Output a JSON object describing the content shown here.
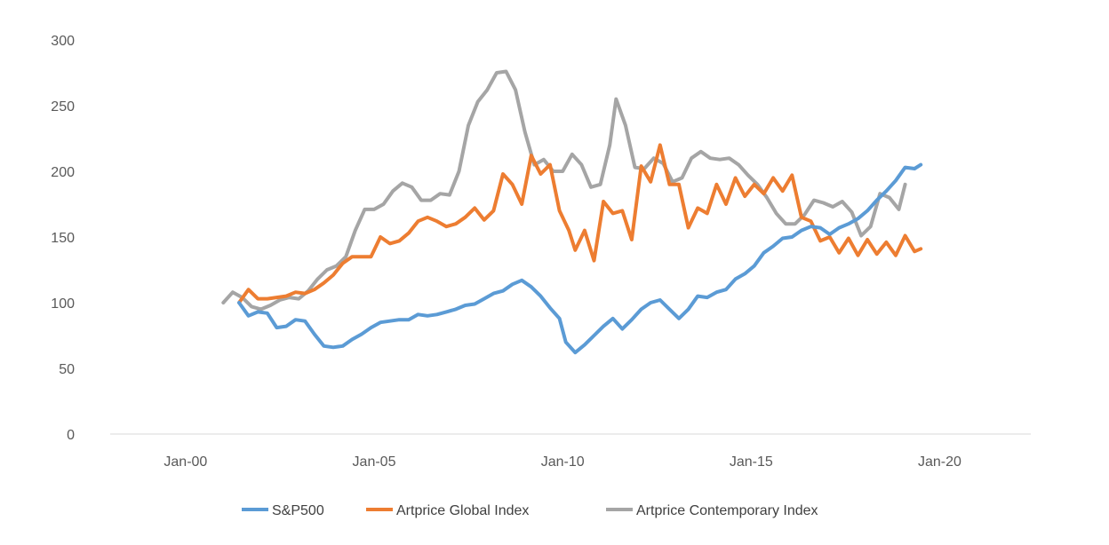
{
  "chart_data": {
    "type": "line",
    "title": "",
    "xlabel": "",
    "ylabel": "",
    "x_ticks": [
      "Jan-00",
      "Jan-05",
      "Jan-10",
      "Jan-15",
      "Jan-20"
    ],
    "x_tick_years": [
      2000,
      2005,
      2010,
      2015,
      2020
    ],
    "y_ticks": [
      0,
      50,
      100,
      150,
      200,
      250,
      300
    ],
    "ylim": [
      0,
      300
    ],
    "xlim": [
      "1998-01",
      "2022-06"
    ],
    "grid": false,
    "legend_position": "bottom",
    "series": [
      {
        "name": "S&P500",
        "color": "#5b9bd5",
        "points": [
          [
            "2001-06",
            100
          ],
          [
            "2001-09",
            90
          ],
          [
            "2001-12",
            93
          ],
          [
            "2002-03",
            92
          ],
          [
            "2002-06",
            81
          ],
          [
            "2002-09",
            82
          ],
          [
            "2002-12",
            87
          ],
          [
            "2003-03",
            86
          ],
          [
            "2003-06",
            76
          ],
          [
            "2003-09",
            67
          ],
          [
            "2003-12",
            66
          ],
          [
            "2004-03",
            67
          ],
          [
            "2004-06",
            72
          ],
          [
            "2004-09",
            76
          ],
          [
            "2004-12",
            81
          ],
          [
            "2005-03",
            85
          ],
          [
            "2005-06",
            86
          ],
          [
            "2005-09",
            87
          ],
          [
            "2005-12",
            87
          ],
          [
            "2006-03",
            91
          ],
          [
            "2006-06",
            90
          ],
          [
            "2006-09",
            91
          ],
          [
            "2006-12",
            93
          ],
          [
            "2007-03",
            95
          ],
          [
            "2007-06",
            98
          ],
          [
            "2007-09",
            99
          ],
          [
            "2007-12",
            103
          ],
          [
            "2008-03",
            107
          ],
          [
            "2008-06",
            109
          ],
          [
            "2008-09",
            114
          ],
          [
            "2008-12",
            117
          ],
          [
            "2009-03",
            112
          ],
          [
            "2009-06",
            105
          ],
          [
            "2009-09",
            96
          ],
          [
            "2009-12",
            88
          ],
          [
            "2010-02",
            70
          ],
          [
            "2010-05",
            62
          ],
          [
            "2010-08",
            68
          ],
          [
            "2010-11",
            75
          ],
          [
            "2011-02",
            82
          ],
          [
            "2011-05",
            88
          ],
          [
            "2011-08",
            80
          ],
          [
            "2011-11",
            87
          ],
          [
            "2012-02",
            95
          ],
          [
            "2012-05",
            100
          ],
          [
            "2012-08",
            102
          ],
          [
            "2012-11",
            95
          ],
          [
            "2013-02",
            88
          ],
          [
            "2013-05",
            95
          ],
          [
            "2013-08",
            105
          ],
          [
            "2013-11",
            104
          ],
          [
            "2014-02",
            108
          ],
          [
            "2014-05",
            110
          ],
          [
            "2014-08",
            118
          ],
          [
            "2014-11",
            122
          ],
          [
            "2015-02",
            128
          ],
          [
            "2015-05",
            138
          ],
          [
            "2015-08",
            143
          ],
          [
            "2015-11",
            149
          ],
          [
            "2016-02",
            150
          ],
          [
            "2016-05",
            155
          ],
          [
            "2016-08",
            158
          ],
          [
            "2016-11",
            157
          ],
          [
            "2017-02",
            152
          ],
          [
            "2017-05",
            157
          ],
          [
            "2017-08",
            160
          ],
          [
            "2017-11",
            164
          ],
          [
            "2018-02",
            170
          ],
          [
            "2018-05",
            178
          ],
          [
            "2018-08",
            185
          ],
          [
            "2018-11",
            193
          ],
          [
            "2019-02",
            203
          ],
          [
            "2019-05",
            202
          ],
          [
            "2019-07",
            205
          ]
        ]
      },
      {
        "name": "Artprice Global Index",
        "color": "#ed7d31",
        "points": [
          [
            "2001-06",
            100
          ],
          [
            "2001-09",
            110
          ],
          [
            "2001-12",
            103
          ],
          [
            "2002-03",
            103
          ],
          [
            "2002-06",
            104
          ],
          [
            "2002-09",
            105
          ],
          [
            "2002-12",
            108
          ],
          [
            "2003-03",
            107
          ],
          [
            "2003-06",
            110
          ],
          [
            "2003-09",
            115
          ],
          [
            "2003-12",
            121
          ],
          [
            "2004-03",
            130
          ],
          [
            "2004-06",
            135
          ],
          [
            "2004-09",
            135
          ],
          [
            "2004-12",
            135
          ],
          [
            "2005-03",
            150
          ],
          [
            "2005-06",
            145
          ],
          [
            "2005-09",
            147
          ],
          [
            "2005-12",
            153
          ],
          [
            "2006-03",
            162
          ],
          [
            "2006-06",
            165
          ],
          [
            "2006-09",
            162
          ],
          [
            "2006-12",
            158
          ],
          [
            "2007-03",
            160
          ],
          [
            "2007-06",
            165
          ],
          [
            "2007-09",
            172
          ],
          [
            "2007-12",
            163
          ],
          [
            "2008-03",
            170
          ],
          [
            "2008-06",
            198
          ],
          [
            "2008-09",
            190
          ],
          [
            "2008-12",
            175
          ],
          [
            "2009-03",
            212
          ],
          [
            "2009-06",
            198
          ],
          [
            "2009-09",
            205
          ],
          [
            "2009-12",
            170
          ],
          [
            "2010-03",
            155
          ],
          [
            "2010-05",
            140
          ],
          [
            "2010-08",
            155
          ],
          [
            "2010-11",
            132
          ],
          [
            "2011-02",
            177
          ],
          [
            "2011-05",
            168
          ],
          [
            "2011-08",
            170
          ],
          [
            "2011-11",
            148
          ],
          [
            "2012-02",
            204
          ],
          [
            "2012-05",
            192
          ],
          [
            "2012-08",
            220
          ],
          [
            "2012-11",
            190
          ],
          [
            "2013-02",
            190
          ],
          [
            "2013-05",
            157
          ],
          [
            "2013-08",
            172
          ],
          [
            "2013-11",
            168
          ],
          [
            "2014-02",
            190
          ],
          [
            "2014-05",
            175
          ],
          [
            "2014-08",
            195
          ],
          [
            "2014-11",
            181
          ],
          [
            "2015-02",
            190
          ],
          [
            "2015-05",
            183
          ],
          [
            "2015-08",
            195
          ],
          [
            "2015-11",
            185
          ],
          [
            "2016-02",
            197
          ],
          [
            "2016-05",
            165
          ],
          [
            "2016-08",
            162
          ],
          [
            "2016-11",
            147
          ],
          [
            "2017-02",
            150
          ],
          [
            "2017-05",
            138
          ],
          [
            "2017-08",
            149
          ],
          [
            "2017-11",
            136
          ],
          [
            "2018-02",
            148
          ],
          [
            "2018-05",
            137
          ],
          [
            "2018-08",
            146
          ],
          [
            "2018-11",
            136
          ],
          [
            "2019-02",
            151
          ],
          [
            "2019-05",
            139
          ],
          [
            "2019-07",
            141
          ]
        ]
      },
      {
        "name": "Artprice Contemporary Index",
        "color": "#a5a5a5",
        "points": [
          [
            "2001-01",
            100
          ],
          [
            "2001-04",
            108
          ],
          [
            "2001-07",
            104
          ],
          [
            "2001-10",
            97
          ],
          [
            "2002-01",
            95
          ],
          [
            "2002-04",
            98
          ],
          [
            "2002-07",
            102
          ],
          [
            "2002-10",
            104
          ],
          [
            "2003-01",
            103
          ],
          [
            "2003-04",
            109
          ],
          [
            "2003-07",
            118
          ],
          [
            "2003-10",
            125
          ],
          [
            "2004-01",
            128
          ],
          [
            "2004-04",
            135
          ],
          [
            "2004-07",
            155
          ],
          [
            "2004-10",
            171
          ],
          [
            "2005-01",
            171
          ],
          [
            "2005-04",
            175
          ],
          [
            "2005-07",
            185
          ],
          [
            "2005-10",
            191
          ],
          [
            "2006-01",
            188
          ],
          [
            "2006-04",
            178
          ],
          [
            "2006-07",
            178
          ],
          [
            "2006-10",
            183
          ],
          [
            "2007-01",
            182
          ],
          [
            "2007-04",
            200
          ],
          [
            "2007-07",
            235
          ],
          [
            "2007-10",
            253
          ],
          [
            "2008-01",
            262
          ],
          [
            "2008-04",
            275
          ],
          [
            "2008-07",
            276
          ],
          [
            "2008-10",
            262
          ],
          [
            "2009-01",
            230
          ],
          [
            "2009-04",
            205
          ],
          [
            "2009-07",
            209
          ],
          [
            "2009-10",
            200
          ],
          [
            "2010-01",
            200
          ],
          [
            "2010-04",
            213
          ],
          [
            "2010-07",
            205
          ],
          [
            "2010-10",
            188
          ],
          [
            "2011-01",
            190
          ],
          [
            "2011-04",
            220
          ],
          [
            "2011-06",
            255
          ],
          [
            "2011-09",
            235
          ],
          [
            "2011-12",
            203
          ],
          [
            "2012-03",
            202
          ],
          [
            "2012-06",
            210
          ],
          [
            "2012-09",
            206
          ],
          [
            "2012-12",
            192
          ],
          [
            "2013-03",
            195
          ],
          [
            "2013-06",
            210
          ],
          [
            "2013-09",
            215
          ],
          [
            "2013-12",
            210
          ],
          [
            "2014-03",
            209
          ],
          [
            "2014-06",
            210
          ],
          [
            "2014-09",
            205
          ],
          [
            "2014-12",
            197
          ],
          [
            "2015-03",
            190
          ],
          [
            "2015-06",
            180
          ],
          [
            "2015-09",
            168
          ],
          [
            "2015-12",
            160
          ],
          [
            "2016-03",
            160
          ],
          [
            "2016-06",
            167
          ],
          [
            "2016-09",
            178
          ],
          [
            "2016-12",
            176
          ],
          [
            "2017-03",
            173
          ],
          [
            "2017-06",
            177
          ],
          [
            "2017-09",
            169
          ],
          [
            "2017-12",
            151
          ],
          [
            "2018-03",
            158
          ],
          [
            "2018-06",
            183
          ],
          [
            "2018-09",
            180
          ],
          [
            "2018-12",
            171
          ],
          [
            "2019-02",
            190
          ]
        ]
      }
    ]
  }
}
